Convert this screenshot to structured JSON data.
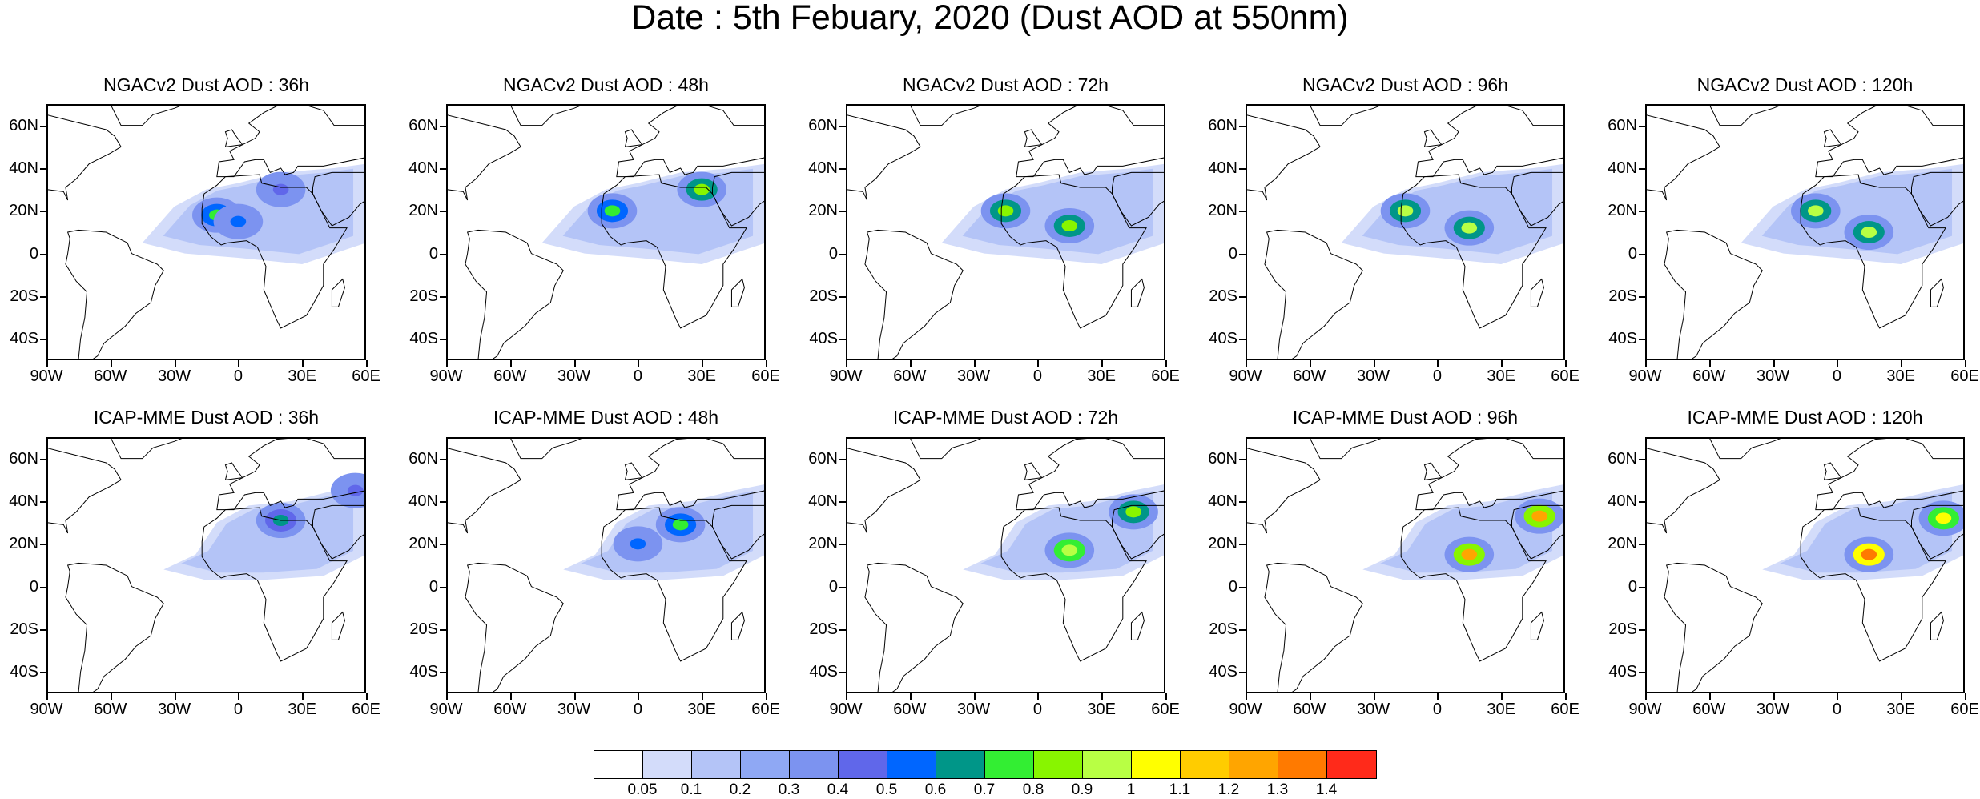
{
  "title": "Date : 5th Febuary, 2020 (Dust AOD at 550nm)",
  "rows": [
    {
      "model": "NGACv2",
      "panels": [
        {
          "title": "NGACv2 Dust AOD : 36h",
          "hotspots": [
            {
              "lon": -10,
              "lat": 18,
              "level": 0.75
            },
            {
              "lon": 0,
              "lat": 15,
              "level": 0.5
            },
            {
              "lon": 20,
              "lat": 30,
              "level": 0.45
            }
          ]
        },
        {
          "title": "NGACv2 Dust AOD : 48h",
          "hotspots": [
            {
              "lon": -12,
              "lat": 20,
              "level": 0.7
            },
            {
              "lon": 30,
              "lat": 30,
              "level": 0.85
            }
          ]
        },
        {
          "title": "NGACv2 Dust AOD : 72h",
          "hotspots": [
            {
              "lon": -15,
              "lat": 20,
              "level": 0.85
            },
            {
              "lon": 15,
              "lat": 13,
              "level": 0.85
            }
          ]
        },
        {
          "title": "NGACv2 Dust AOD : 96h",
          "hotspots": [
            {
              "lon": -15,
              "lat": 20,
              "level": 0.9
            },
            {
              "lon": 15,
              "lat": 12,
              "level": 0.9
            }
          ]
        },
        {
          "title": "NGACv2 Dust AOD : 120h",
          "hotspots": [
            {
              "lon": -10,
              "lat": 20,
              "level": 0.9
            },
            {
              "lon": 15,
              "lat": 10,
              "level": 0.9
            }
          ]
        }
      ]
    },
    {
      "model": "ICAP-MME",
      "panels": [
        {
          "title": "ICAP-MME Dust AOD : 36h",
          "hotspots": [
            {
              "lon": 20,
              "lat": 31,
              "level": 0.65
            },
            {
              "lon": 55,
              "lat": 45,
              "level": 0.45
            }
          ]
        },
        {
          "title": "ICAP-MME Dust AOD : 48h",
          "hotspots": [
            {
              "lon": 20,
              "lat": 29,
              "level": 0.75
            },
            {
              "lon": 0,
              "lat": 20,
              "level": 0.5
            }
          ]
        },
        {
          "title": "ICAP-MME Dust AOD : 72h",
          "hotspots": [
            {
              "lon": 15,
              "lat": 17,
              "level": 0.95
            },
            {
              "lon": 45,
              "lat": 35,
              "level": 0.8
            }
          ]
        },
        {
          "title": "ICAP-MME Dust AOD : 96h",
          "hotspots": [
            {
              "lon": 15,
              "lat": 15,
              "level": 1.2
            },
            {
              "lon": 48,
              "lat": 33,
              "level": 1.2
            }
          ]
        },
        {
          "title": "ICAP-MME Dust AOD : 120h",
          "hotspots": [
            {
              "lon": 15,
              "lat": 15,
              "level": 1.35
            },
            {
              "lon": 50,
              "lat": 32,
              "level": 1.0
            }
          ]
        }
      ]
    }
  ],
  "lat_labels": [
    "60N",
    "40N",
    "20N",
    "0",
    "20S",
    "40S"
  ],
  "lat_values": [
    60,
    40,
    20,
    0,
    -20,
    -40
  ],
  "lon_labels": [
    "90W",
    "60W",
    "30W",
    "0",
    "30E",
    "60E"
  ],
  "lon_values": [
    -90,
    -60,
    -30,
    0,
    30,
    60
  ],
  "extent": {
    "lon_min": -90,
    "lon_max": 60,
    "lat_min": -50,
    "lat_max": 70
  },
  "colorbar": {
    "labels": [
      "0.05",
      "0.1",
      "0.2",
      "0.3",
      "0.4",
      "0.5",
      "0.6",
      "0.7",
      "0.8",
      "0.9",
      "1",
      "1.1",
      "1.2",
      "1.3",
      "1.4"
    ],
    "colors": [
      "#ffffff",
      "#d3dcfa",
      "#b4c4f7",
      "#8fa8f4",
      "#7c93f0",
      "#6067ea",
      "#0066ff",
      "#009688",
      "#33ee33",
      "#88f500",
      "#b8ff44",
      "#ffff00",
      "#ffcc00",
      "#ffa500",
      "#ff7a00",
      "#ff2a1a"
    ]
  }
}
